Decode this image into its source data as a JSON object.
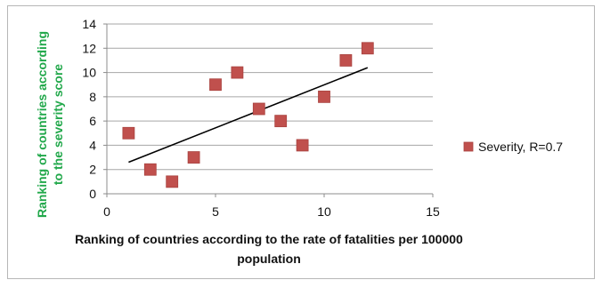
{
  "chart_data": {
    "type": "scatter",
    "xlabel_lines": [
      "Ranking of countries according to the rate of fatalities per 100000",
      "population"
    ],
    "ylabel_lines": [
      "Ranking of countries according",
      "to the severity score"
    ],
    "xlim": [
      0,
      15
    ],
    "ylim": [
      0,
      14
    ],
    "x_ticks": [
      "0",
      "5",
      "10",
      "15"
    ],
    "y_ticks": [
      "0",
      "2",
      "4",
      "6",
      "8",
      "10",
      "12",
      "14"
    ],
    "grid": "horizontal",
    "legend_position": "right",
    "series": [
      {
        "name": "Severity, R=0.7",
        "marker": "square",
        "color": "#c0504d",
        "points": [
          {
            "x": 1,
            "y": 5
          },
          {
            "x": 2,
            "y": 2
          },
          {
            "x": 3,
            "y": 1
          },
          {
            "x": 4,
            "y": 3
          },
          {
            "x": 5,
            "y": 9
          },
          {
            "x": 6,
            "y": 10
          },
          {
            "x": 7,
            "y": 7
          },
          {
            "x": 8,
            "y": 6
          },
          {
            "x": 9,
            "y": 4
          },
          {
            "x": 10,
            "y": 8
          },
          {
            "x": 11,
            "y": 11
          },
          {
            "x": 12,
            "y": 12
          }
        ]
      }
    ],
    "trendline": {
      "type": "linear",
      "color": "#000000",
      "x_range": [
        1,
        12
      ],
      "y_range": [
        2.6,
        10.4
      ]
    },
    "colors": {
      "ylabel": "#22a84b",
      "marker": "#c0504d",
      "grid": "#a6a6a6",
      "axis": "#8c8c8c"
    }
  }
}
